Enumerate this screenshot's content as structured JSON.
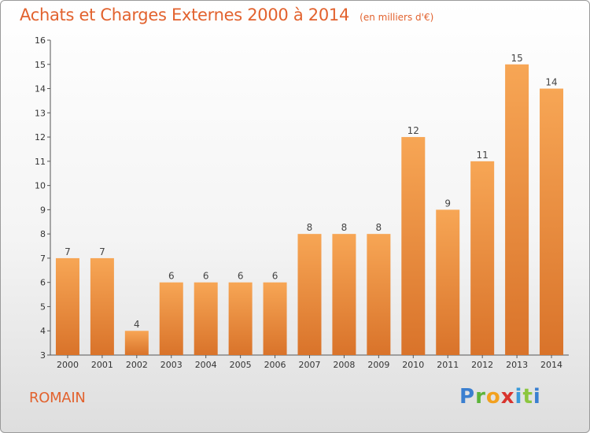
{
  "chart_data": {
    "type": "bar",
    "title": "Achats et Charges Externes 2000 à 2014",
    "subtitle": "(en milliers d'€)",
    "categories": [
      "2000",
      "2001",
      "2002",
      "2003",
      "2004",
      "2005",
      "2006",
      "2007",
      "2008",
      "2009",
      "2010",
      "2011",
      "2012",
      "2013",
      "2014"
    ],
    "values": [
      7,
      7,
      4,
      6,
      6,
      6,
      6,
      8,
      8,
      8,
      12,
      9,
      11,
      15,
      14
    ],
    "xlabel": "",
    "ylabel": "",
    "ylim": [
      3,
      16
    ],
    "yticks": [
      3,
      4,
      5,
      6,
      7,
      8,
      9,
      10,
      11,
      12,
      13,
      14,
      15,
      16
    ],
    "grid": false,
    "legend": "none",
    "bar_color_top": "#f7a655",
    "bar_color_bottom": "#d9732a"
  },
  "commune": "ROMAIN",
  "logo": {
    "letters": [
      "P",
      "r",
      "o",
      "x",
      "i",
      "t",
      "i"
    ],
    "colors": [
      "#3a7fd0",
      "#5db43a",
      "#f2a11f",
      "#d8342e",
      "#3a9ad9",
      "#8cc63f",
      "#3a7fd0"
    ]
  },
  "colors": {
    "title": "#e2622e",
    "axis": "#333333"
  }
}
